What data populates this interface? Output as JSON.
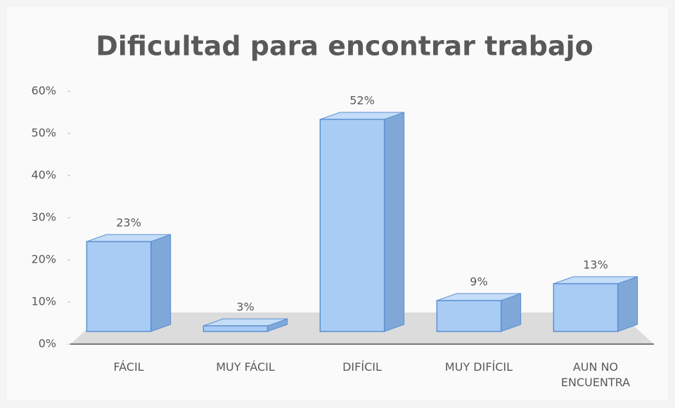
{
  "chart_data": {
    "type": "bar",
    "title": "Dificultad para encontrar trabajo",
    "categories": [
      "FÁCIL",
      "MUY FÁCIL",
      "DIFÍCIL",
      "MUY DIFÍCIL",
      "AUN NO ENCUENTRA"
    ],
    "values": [
      23,
      3,
      52,
      9,
      13
    ],
    "value_labels": [
      "23%",
      "3%",
      "52%",
      "9%",
      "13%"
    ],
    "color": "#a9ccf5",
    "ylim": [
      0,
      60
    ],
    "yticks": [
      {
        "value": 0,
        "label": "0%"
      },
      {
        "value": 10,
        "label": "10%"
      },
      {
        "value": 20,
        "label": "20%"
      },
      {
        "value": 30,
        "label": "30%"
      },
      {
        "value": 40,
        "label": "40%"
      },
      {
        "value": 50,
        "label": "50%"
      },
      {
        "value": 60,
        "label": "60%"
      }
    ]
  }
}
